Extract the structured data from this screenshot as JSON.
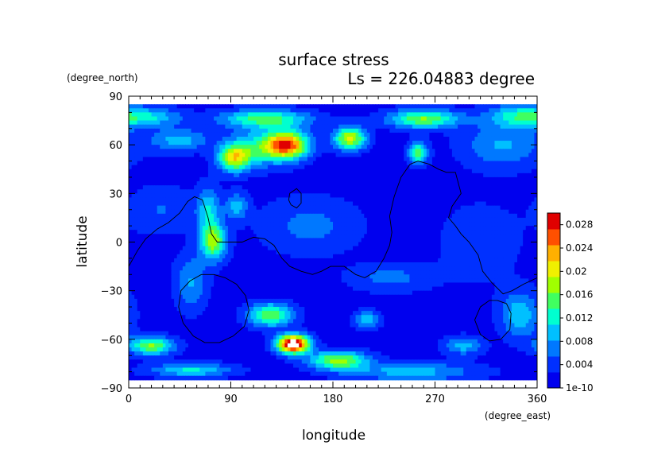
{
  "chart_data": {
    "type": "heatmap",
    "title": "surface stress",
    "subtitle": "Ls = 226.04883 degree",
    "xlabel": "longitude",
    "ylabel": "latitude",
    "x_unit": "(degree_east)",
    "y_unit": "(degree_north)",
    "xlim": [
      0,
      360
    ],
    "ylim": [
      -90,
      90
    ],
    "x_ticks": [
      "0",
      "90",
      "180",
      "270",
      "360"
    ],
    "y_ticks": [
      "90",
      "60",
      "30",
      "0",
      "−30",
      "−60",
      "−90"
    ],
    "x_tick_values": [
      0,
      90,
      180,
      270,
      360
    ],
    "y_tick_values": [
      90,
      60,
      30,
      0,
      -30,
      -60,
      -90
    ],
    "data_lat_range": [
      -85,
      85
    ],
    "colorbar": {
      "range": [
        0,
        0.03
      ],
      "tick_labels": [
        "1e-10",
        "0.004",
        "0.008",
        "0.012",
        "0.016",
        "0.02",
        "0.024",
        "0.028"
      ],
      "tick_values": [
        0,
        0.004,
        0.008,
        0.012,
        0.016,
        0.02,
        0.024,
        0.028
      ],
      "colors": [
        "#0000ee",
        "#0030ff",
        "#0078ff",
        "#00c0ff",
        "#00ffd0",
        "#40ff60",
        "#a0ff00",
        "#f0f000",
        "#ffb000",
        "#ff5000",
        "#e00000"
      ]
    },
    "grid": false,
    "maxima": [
      {
        "lon": 145,
        "lat": -63,
        "value": 0.03
      },
      {
        "lon": 140,
        "lat": 59,
        "value": 0.029
      }
    ],
    "field_features": [
      {
        "lon": 145,
        "lat": -63,
        "value": 0.032,
        "sx": 10,
        "sy": 4
      },
      {
        "lon": 140,
        "lat": 60,
        "value": 0.024,
        "sx": 13,
        "sy": 6
      },
      {
        "lon": 195,
        "lat": 64,
        "value": 0.018,
        "sx": 10,
        "sy": 5
      },
      {
        "lon": 93,
        "lat": 52,
        "value": 0.017,
        "sx": 10,
        "sy": 6
      },
      {
        "lon": 115,
        "lat": 58,
        "value": 0.01,
        "sx": 18,
        "sy": 8
      },
      {
        "lon": 120,
        "lat": 76,
        "value": 0.013,
        "sx": 28,
        "sy": 4
      },
      {
        "lon": 260,
        "lat": 76,
        "value": 0.015,
        "sx": 22,
        "sy": 4
      },
      {
        "lon": 345,
        "lat": 78,
        "value": 0.01,
        "sx": 20,
        "sy": 5
      },
      {
        "lon": 20,
        "lat": 77,
        "value": 0.008,
        "sx": 20,
        "sy": 4
      },
      {
        "lon": 45,
        "lat": 63,
        "value": 0.008,
        "sx": 18,
        "sy": 5
      },
      {
        "lon": 255,
        "lat": 55,
        "value": 0.014,
        "sx": 6,
        "sy": 5
      },
      {
        "lon": 75,
        "lat": 0,
        "value": 0.016,
        "sx": 8,
        "sy": 8
      },
      {
        "lon": 70,
        "lat": 20,
        "value": 0.009,
        "sx": 7,
        "sy": 10
      },
      {
        "lon": 95,
        "lat": 22,
        "value": 0.008,
        "sx": 7,
        "sy": 6
      },
      {
        "lon": 55,
        "lat": -25,
        "value": 0.007,
        "sx": 10,
        "sy": 12
      },
      {
        "lon": 125,
        "lat": -45,
        "value": 0.015,
        "sx": 14,
        "sy": 5
      },
      {
        "lon": 185,
        "lat": -73,
        "value": 0.016,
        "sx": 18,
        "sy": 4
      },
      {
        "lon": 20,
        "lat": -64,
        "value": 0.015,
        "sx": 14,
        "sy": 4
      },
      {
        "lon": 55,
        "lat": -79,
        "value": 0.01,
        "sx": 25,
        "sy": 3
      },
      {
        "lon": 250,
        "lat": -80,
        "value": 0.008,
        "sx": 40,
        "sy": 4
      },
      {
        "lon": 345,
        "lat": -45,
        "value": 0.009,
        "sx": 12,
        "sy": 10
      },
      {
        "lon": 295,
        "lat": -64,
        "value": 0.008,
        "sx": 12,
        "sy": 4
      },
      {
        "lon": 210,
        "lat": -48,
        "value": 0.009,
        "sx": 8,
        "sy": 4
      },
      {
        "lon": 230,
        "lat": -22,
        "value": 0.005,
        "sx": 25,
        "sy": 6
      },
      {
        "lon": 160,
        "lat": 10,
        "value": 0.005,
        "sx": 30,
        "sy": 12
      },
      {
        "lon": 30,
        "lat": 20,
        "value": 0.004,
        "sx": 20,
        "sy": 10
      },
      {
        "lon": 330,
        "lat": 60,
        "value": 0.007,
        "sx": 25,
        "sy": 10
      },
      {
        "lon": 310,
        "lat": 0,
        "value": 0.0025,
        "sx": 30,
        "sy": 20
      }
    ],
    "contours": [
      {
        "name": "equatorial-contour",
        "points": [
          [
            0,
            -15
          ],
          [
            8,
            -5
          ],
          [
            15,
            2
          ],
          [
            25,
            8
          ],
          [
            35,
            12
          ],
          [
            45,
            18
          ],
          [
            52,
            25
          ],
          [
            58,
            28
          ],
          [
            65,
            26
          ],
          [
            70,
            15
          ],
          [
            73,
            5
          ],
          [
            78,
            0
          ],
          [
            90,
            0
          ],
          [
            100,
            0
          ],
          [
            110,
            3
          ],
          [
            120,
            2
          ],
          [
            128,
            -2
          ],
          [
            135,
            -10
          ],
          [
            142,
            -15
          ],
          [
            152,
            -18
          ],
          [
            162,
            -20
          ],
          [
            170,
            -18
          ],
          [
            178,
            -15
          ],
          [
            190,
            -15
          ],
          [
            200,
            -20
          ],
          [
            208,
            -22
          ],
          [
            218,
            -18
          ],
          [
            225,
            -10
          ],
          [
            230,
            -2
          ],
          [
            232,
            6
          ],
          [
            230,
            16
          ],
          [
            234,
            28
          ],
          [
            240,
            40
          ],
          [
            248,
            48
          ],
          [
            255,
            50
          ],
          [
            265,
            48
          ],
          [
            273,
            45
          ],
          [
            280,
            43
          ],
          [
            288,
            43
          ],
          [
            293,
            30
          ],
          [
            285,
            22
          ],
          [
            282,
            15
          ],
          [
            288,
            10
          ],
          [
            293,
            5
          ],
          [
            300,
            0
          ],
          [
            308,
            -8
          ],
          [
            312,
            -18
          ],
          [
            320,
            -25
          ],
          [
            330,
            -32
          ],
          [
            338,
            -30
          ],
          [
            348,
            -26
          ],
          [
            360,
            -22
          ]
        ]
      },
      {
        "name": "small-contour-north",
        "points": [
          [
            143,
            23
          ],
          [
            148,
            21
          ],
          [
            152,
            24
          ],
          [
            152,
            30
          ],
          [
            148,
            33
          ],
          [
            142,
            30
          ],
          [
            141,
            26
          ],
          [
            143,
            23
          ]
        ]
      },
      {
        "name": "southwest-basin-contour",
        "points": [
          [
            75,
            -20
          ],
          [
            85,
            -22
          ],
          [
            95,
            -26
          ],
          [
            103,
            -33
          ],
          [
            106,
            -42
          ],
          [
            102,
            -52
          ],
          [
            92,
            -58
          ],
          [
            80,
            -62
          ],
          [
            67,
            -62
          ],
          [
            57,
            -58
          ],
          [
            48,
            -50
          ],
          [
            44,
            -40
          ],
          [
            46,
            -30
          ],
          [
            54,
            -24
          ],
          [
            64,
            -20
          ],
          [
            75,
            -20
          ]
        ]
      },
      {
        "name": "southeast-basin-contour",
        "points": [
          [
            325,
            -36
          ],
          [
            333,
            -38
          ],
          [
            337,
            -44
          ],
          [
            336,
            -54
          ],
          [
            328,
            -60
          ],
          [
            318,
            -61
          ],
          [
            310,
            -57
          ],
          [
            305,
            -48
          ],
          [
            310,
            -40
          ],
          [
            318,
            -36
          ],
          [
            325,
            -36
          ]
        ]
      }
    ]
  }
}
